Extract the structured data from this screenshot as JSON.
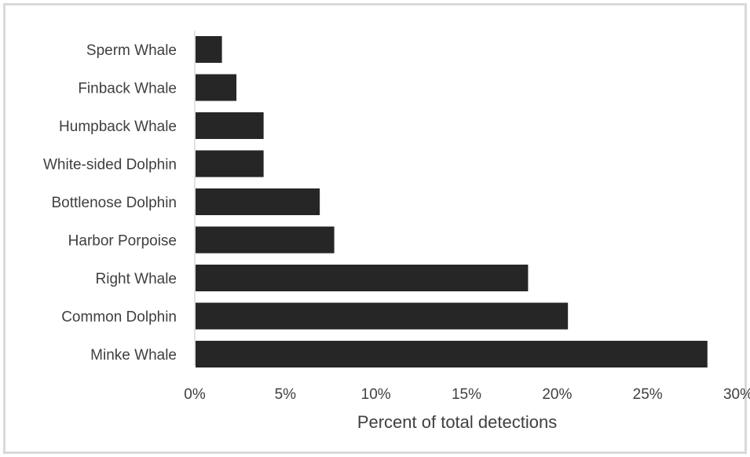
{
  "chart_data": {
    "type": "bar",
    "orientation": "horizontal",
    "categories": [
      "Sperm Whale",
      "Finback Whale",
      "Humpback Whale",
      "White-sided Dolphin",
      "Bottlenose Dolphin",
      "Harbor Porpoise",
      "Right Whale",
      "Common Dolphin",
      "Minke Whale"
    ],
    "values": [
      1.5,
      2.3,
      3.8,
      3.8,
      6.9,
      7.7,
      18.4,
      20.6,
      28.3
    ],
    "xlabel": "Percent of total detections",
    "ylabel": "",
    "xlim": [
      0,
      30
    ],
    "xticks": [
      0,
      5,
      10,
      15,
      20,
      25,
      30
    ],
    "xtick_labels": [
      "0%",
      "5%",
      "10%",
      "15%",
      "20%",
      "25%",
      "30%"
    ],
    "grid": false,
    "legend": "none",
    "bar_color": "#262626",
    "axis_color": "#d9d9d9",
    "text_color": "#3f3f3f"
  }
}
